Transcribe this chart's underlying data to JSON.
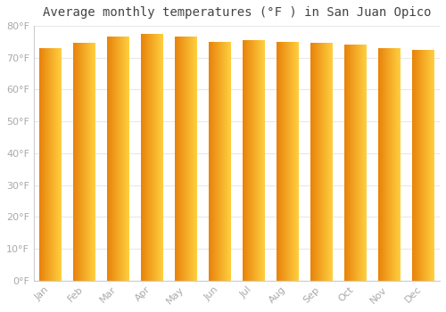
{
  "title": "Average monthly temperatures (°F ) in San Juan Opico",
  "months": [
    "Jan",
    "Feb",
    "Mar",
    "Apr",
    "May",
    "Jun",
    "Jul",
    "Aug",
    "Sep",
    "Oct",
    "Nov",
    "Dec"
  ],
  "values": [
    73,
    74.5,
    76.5,
    77.5,
    76.5,
    75,
    75.5,
    75,
    74.5,
    74,
    73,
    72.5
  ],
  "bar_color_left": "#E8820A",
  "bar_color_right": "#FFD040",
  "background_color": "#FFFFFF",
  "plot_bg_color": "#FFFFFF",
  "grid_color": "#E8E8E8",
  "ylim": [
    0,
    80
  ],
  "yticks": [
    0,
    10,
    20,
    30,
    40,
    50,
    60,
    70,
    80
  ],
  "ytick_labels": [
    "0°F",
    "10°F",
    "20°F",
    "30°F",
    "40°F",
    "50°F",
    "60°F",
    "70°F",
    "80°F"
  ],
  "title_fontsize": 10,
  "tick_fontsize": 8,
  "tick_color": "#AAAAAA",
  "bar_width": 0.65
}
